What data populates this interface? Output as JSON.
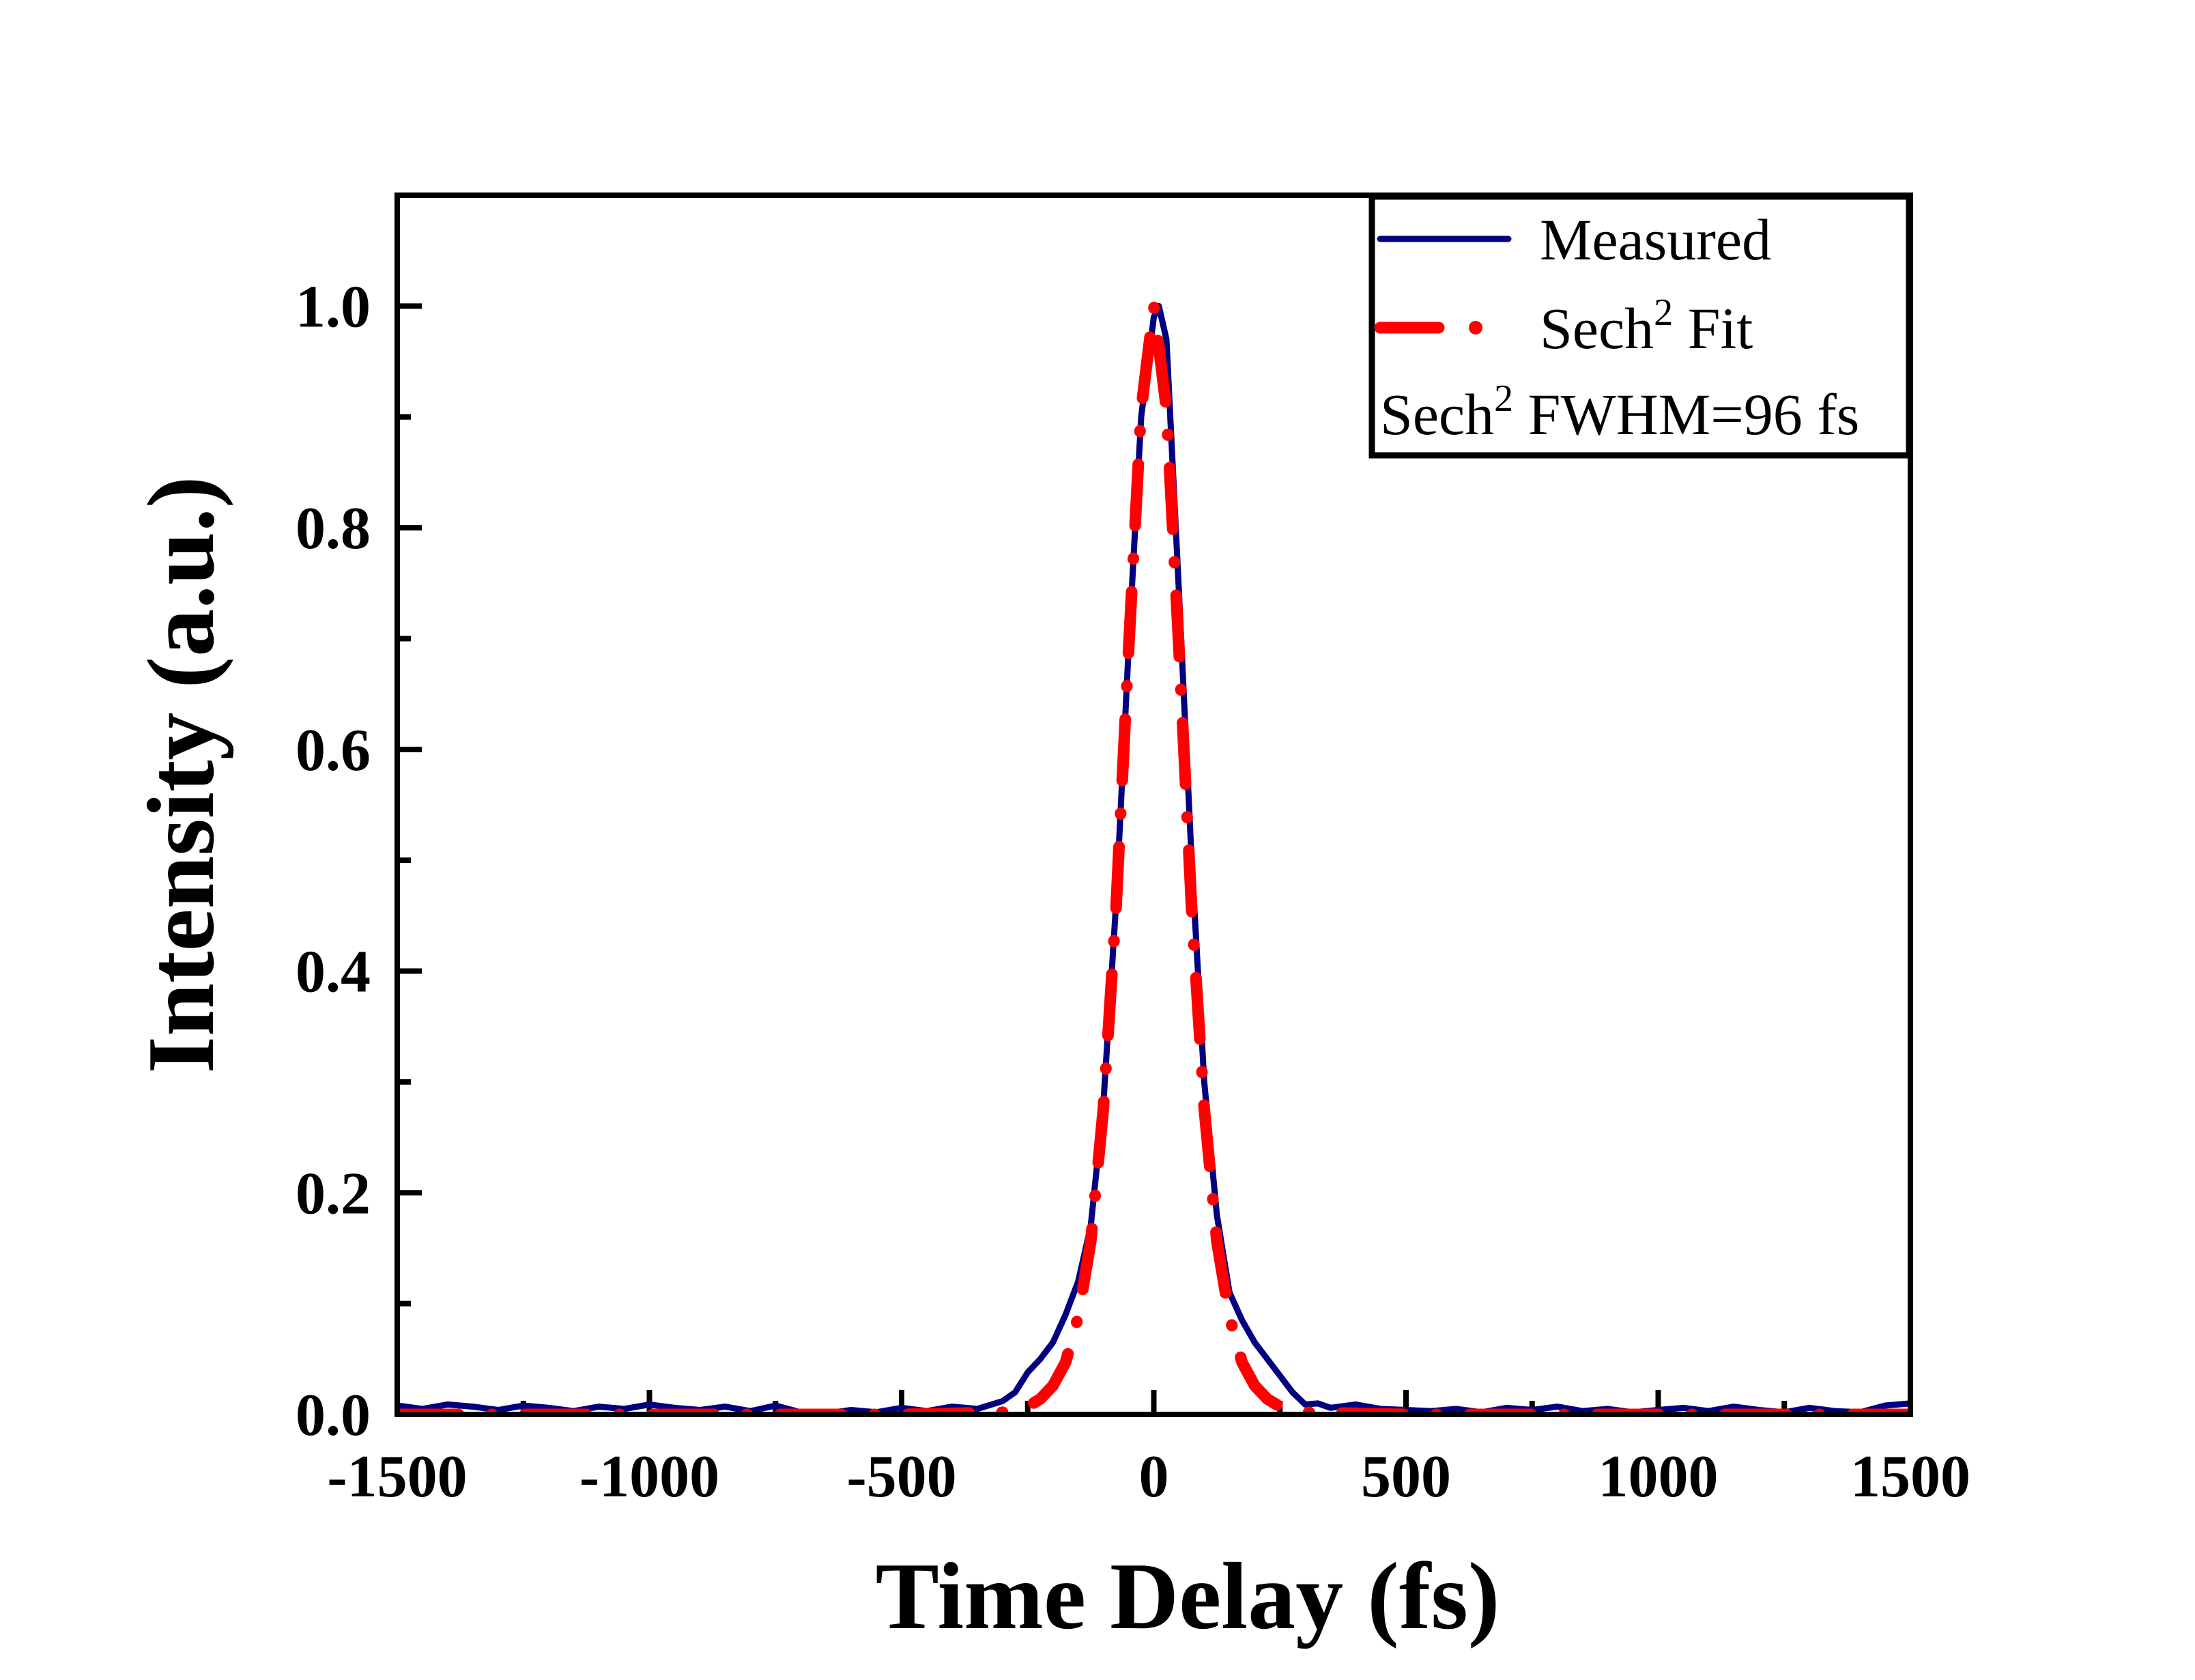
{
  "chart_data": {
    "type": "line",
    "title": "",
    "xlabel": "Time Delay (fs)",
    "ylabel": "Intensity (a.u.)",
    "xlim": [
      -1500,
      1500
    ],
    "ylim": [
      0,
      1.1
    ],
    "grid": false,
    "legend_position": "top-right",
    "x_ticks": [
      "-1500",
      "-1000",
      "-500",
      "0",
      "500",
      "1000",
      "1500"
    ],
    "y_ticks": [
      "0.0",
      "0.2",
      "0.4",
      "0.6",
      "0.8",
      "1.0"
    ],
    "annotation": {
      "prefix": "Sech",
      "sup": "2",
      "suffix": " FWHM=96 fs"
    },
    "series": [
      {
        "name": "Measured",
        "color": "#000080",
        "style": "solid",
        "x": [
          -1500,
          -1450,
          -1400,
          -1350,
          -1300,
          -1250,
          -1200,
          -1150,
          -1100,
          -1050,
          -1000,
          -950,
          -900,
          -850,
          -800,
          -750,
          -700,
          -650,
          -600,
          -550,
          -500,
          -450,
          -400,
          -350,
          -300,
          -275,
          -250,
          -225,
          -200,
          -175,
          -150,
          -125,
          -100,
          -75,
          -50,
          -25,
          0,
          10,
          25,
          50,
          75,
          100,
          125,
          150,
          175,
          200,
          225,
          250,
          275,
          300,
          325,
          350,
          400,
          450,
          500,
          550,
          600,
          650,
          700,
          750,
          800,
          850,
          900,
          950,
          1000,
          1050,
          1100,
          1150,
          1200,
          1250,
          1300,
          1350,
          1400,
          1450,
          1500
        ],
        "y": [
          0.008,
          0.005,
          0.009,
          0.007,
          0.004,
          0.008,
          0.006,
          0.003,
          0.007,
          0.005,
          0.009,
          0.006,
          0.004,
          0.007,
          0.003,
          0.008,
          0.002,
          0.001,
          0.004,
          0.002,
          0.006,
          0.003,
          0.007,
          0.005,
          0.012,
          0.02,
          0.038,
          0.05,
          0.065,
          0.09,
          0.12,
          0.17,
          0.28,
          0.46,
          0.69,
          0.9,
          0.99,
          1.0,
          0.97,
          0.74,
          0.5,
          0.3,
          0.18,
          0.11,
          0.085,
          0.065,
          0.05,
          0.035,
          0.02,
          0.009,
          0.01,
          0.006,
          0.009,
          0.005,
          0.004,
          0.003,
          0.005,
          0.002,
          0.006,
          0.004,
          0.007,
          0.003,
          0.005,
          0.002,
          0.004,
          0.006,
          0.003,
          0.007,
          0.004,
          0.002,
          0.006,
          0.003,
          0.002,
          0.008,
          0.01
        ]
      },
      {
        "name": "Sech² Fit",
        "name_prefix": "Sech",
        "name_sup": "2",
        "name_suffix": " Fit",
        "color": "#ff0000",
        "style": "dash-dot",
        "x": [
          -1500,
          -1000,
          -500,
          -300,
          -275,
          -250,
          -225,
          -200,
          -175,
          -150,
          -125,
          -100,
          -75,
          -50,
          -25,
          0,
          25,
          50,
          75,
          100,
          125,
          150,
          175,
          200,
          225,
          250,
          275,
          300,
          500,
          1000,
          1500
        ],
        "y": [
          0,
          0,
          0,
          0.002,
          0.004,
          0.007,
          0.014,
          0.026,
          0.047,
          0.088,
          0.156,
          0.276,
          0.456,
          0.689,
          0.907,
          1.0,
          0.907,
          0.689,
          0.456,
          0.276,
          0.156,
          0.088,
          0.047,
          0.026,
          0.014,
          0.007,
          0.004,
          0.002,
          0,
          0,
          0
        ]
      }
    ]
  }
}
